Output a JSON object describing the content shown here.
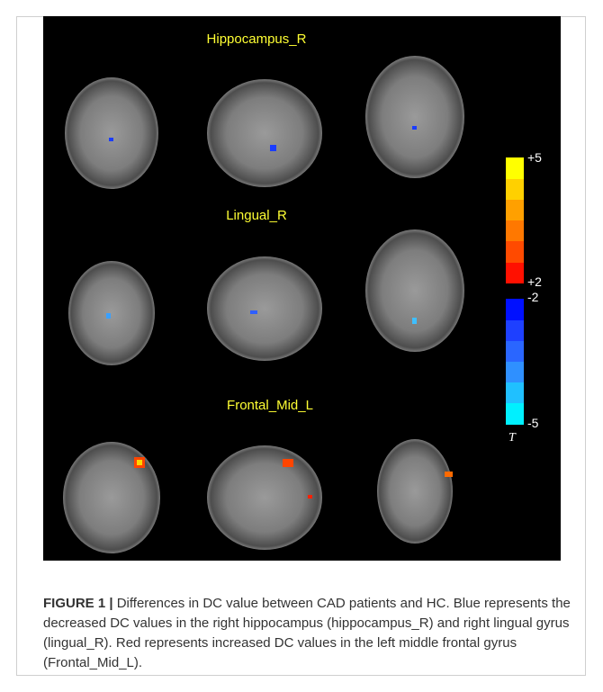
{
  "figure": {
    "panels": [
      {
        "label": "Hippocampus_R"
      },
      {
        "label": "Lingual_R"
      },
      {
        "label": "Frontal_Mid_L"
      }
    ],
    "colorbar": {
      "labels": [
        "+5",
        "+2",
        "-2",
        "-5"
      ],
      "variable": "T"
    }
  },
  "caption": {
    "label": "FIGURE 1 |",
    "text": "Differences in DC value between CAD patients and HC. Blue represents the decreased DC values in the right hippocampus (hippocampus_R) and right lingual gyrus (lingual_R). Red represents increased DC values in the left middle frontal gyrus (Frontal_Mid_L)."
  }
}
